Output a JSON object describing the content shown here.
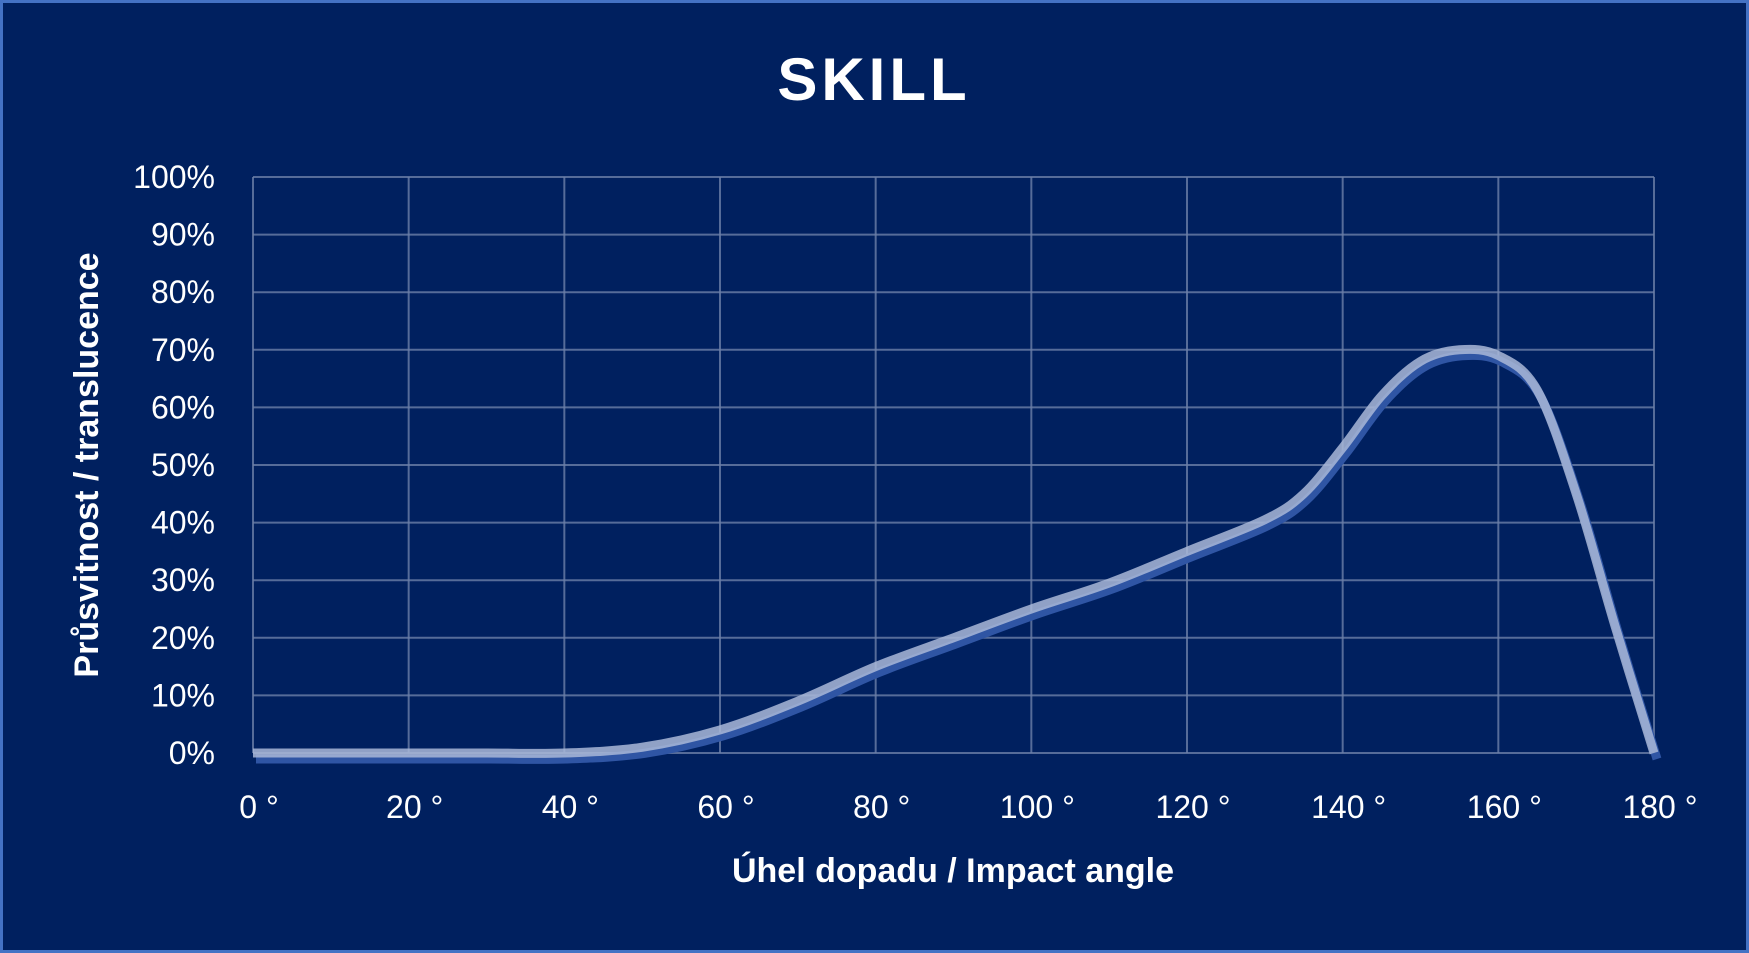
{
  "chart_data": {
    "type": "line",
    "title": "SKILL",
    "xlabel": "Úhel dopadu / Impact angle",
    "ylabel": "Průsvitnost  / translucence",
    "xlim": [
      0,
      180
    ],
    "ylim": [
      0,
      100
    ],
    "x_ticks": [
      "0 °",
      "20 °",
      "40 °",
      "60 °",
      "80 °",
      "100 °",
      "120 °",
      "140 °",
      "160 °",
      "180 °"
    ],
    "y_ticks": [
      "0%",
      "10%",
      "20%",
      "30%",
      "40%",
      "50%",
      "60%",
      "70%",
      "80%",
      "90%",
      "100%"
    ],
    "grid": true,
    "smooth": true,
    "colors": {
      "background": "#00205F",
      "border": "#4472C4",
      "line": "#A9B8D8",
      "line_shadow": "#2F55A4",
      "grid": "#6C7FA8"
    },
    "series": [
      {
        "x": [
          0,
          10,
          20,
          30,
          40,
          50,
          60,
          70,
          80,
          90,
          100,
          110,
          120,
          130,
          135,
          140,
          145,
          150,
          155,
          160,
          165,
          170,
          175,
          180
        ],
        "y": [
          0,
          0,
          0,
          0,
          0,
          1,
          4,
          9,
          15,
          20,
          25,
          29.5,
          35,
          40.5,
          45,
          53,
          62,
          68,
          70,
          69,
          63,
          45,
          22,
          0
        ]
      }
    ]
  }
}
